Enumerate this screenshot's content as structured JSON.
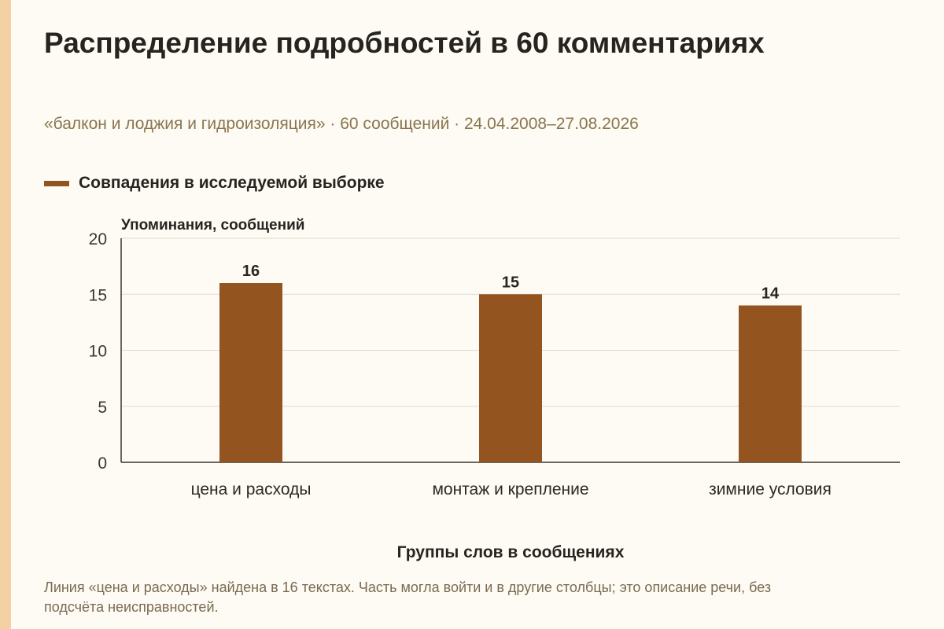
{
  "header": {
    "title": "Распределение подробностей в 60 комментариях",
    "subtitle": "«балкон и лоджия и гидроизоляция» · 60 сообщений · 24.04.2008–27.08.2026"
  },
  "footnote": "Линия «цена и расходы» найдена в 16 текстах. Часть могла войти и в другие столбцы; это описание речи, без подсчёта неисправностей.",
  "colors": {
    "bar": "#93541f",
    "accent_bar": "#f4d1a2",
    "background": "#fdfbf3",
    "grid": "#dedbd2",
    "axis": "#3a3630"
  },
  "chart_data": {
    "type": "bar",
    "title": "Распределение подробностей в 60 комментариях",
    "categories": [
      "цена и расходы",
      "монтаж и крепление",
      "зимние условия"
    ],
    "series": [
      {
        "name": "Совпадения в исследуемой выборке",
        "values": [
          16,
          15,
          14
        ]
      }
    ],
    "xlabel": "Группы слов в сообщениях",
    "ylabel": "Упоминания, сообщений",
    "ylim": [
      0,
      20
    ],
    "yticks": [
      0,
      5,
      10,
      15,
      20
    ],
    "grid": true,
    "legend_position": "top-left",
    "data_labels": true
  }
}
